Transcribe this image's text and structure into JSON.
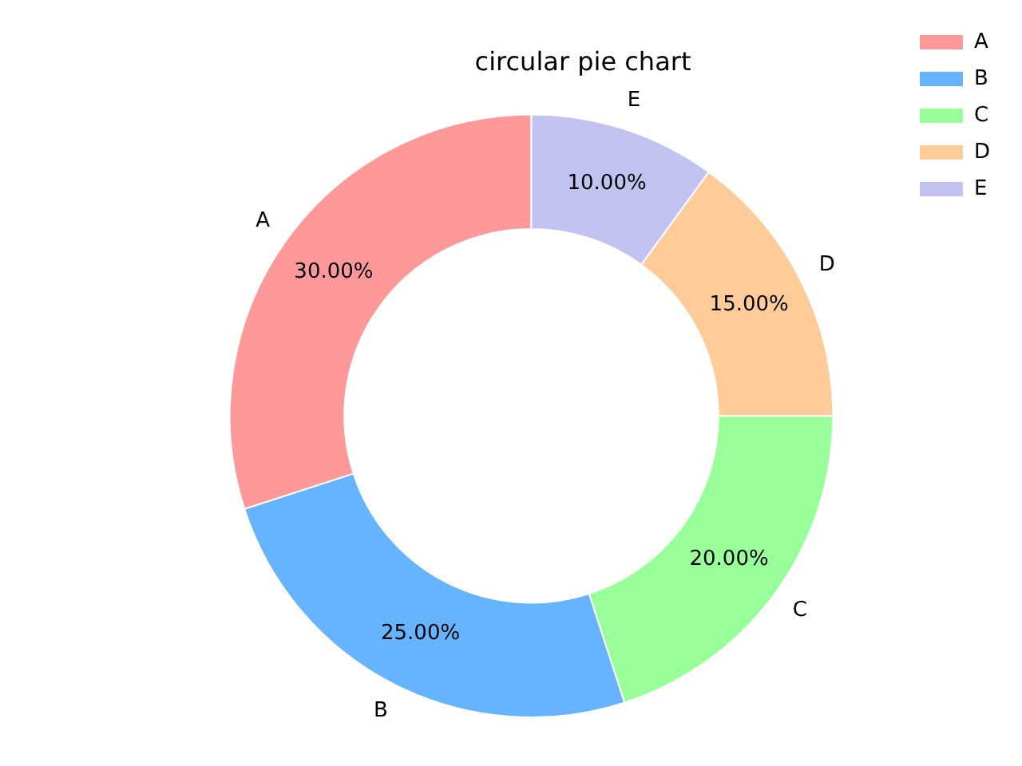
{
  "chart_data": {
    "type": "donut",
    "title": "circular pie chart",
    "categories": [
      "A",
      "B",
      "C",
      "D",
      "E"
    ],
    "values": [
      30,
      25,
      20,
      15,
      10
    ],
    "value_labels": [
      "30.00%",
      "25.00%",
      "20.00%",
      "15.00%",
      "10.00%"
    ],
    "colors": [
      "#ff9999",
      "#66b3ff",
      "#99ff99",
      "#ffcc99",
      "#c2c2f0"
    ],
    "legend": "top right"
  }
}
